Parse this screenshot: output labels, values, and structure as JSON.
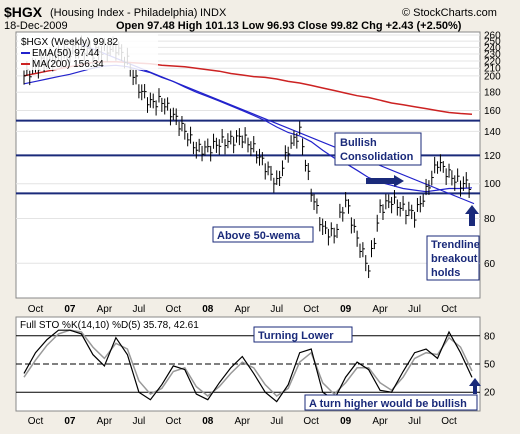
{
  "header": {
    "symbol": "$HGX",
    "name": "(Housing Index - Philadelphia)",
    "exchange": "INDX",
    "date": "18-Dec-2009",
    "ohlc": "Open 97.48  High 101.13  Low 96.93  Close 99.82  Chg +2.43 (+2.50%)",
    "watermark": "© StockCharts.com"
  },
  "legend": {
    "price": "$HGX (Weekly) 99.82",
    "ema": "EMA(50) 97.44",
    "ma": "MA(200) 156.34",
    "sto": "Full STO %K(14,10) %D(5) 35.78, 42.61"
  },
  "annotations": {
    "bullish": [
      "Bullish",
      "Consolidation"
    ],
    "above": "Above 50-wema",
    "trendline": [
      "Trendline",
      "breakout",
      "holds"
    ],
    "turning": "Turning Lower",
    "turn_higher": "A turn higher would be bullish"
  },
  "price_axis": {
    "labels": [
      "260",
      "250",
      "240",
      "230",
      "220",
      "210",
      "200",
      "180",
      "160",
      "140",
      "120",
      "100",
      "80",
      "60"
    ]
  },
  "sto_axis": {
    "labels": [
      "80",
      "50",
      "20"
    ]
  },
  "x_axis": {
    "labels": [
      {
        "text": "Oct",
        "bold": false
      },
      {
        "text": "07",
        "bold": true
      },
      {
        "text": "Apr",
        "bold": false
      },
      {
        "text": "Jul",
        "bold": false
      },
      {
        "text": "Oct",
        "bold": false
      },
      {
        "text": "08",
        "bold": true
      },
      {
        "text": "Apr",
        "bold": false
      },
      {
        "text": "Jul",
        "bold": false
      },
      {
        "text": "Oct",
        "bold": false
      },
      {
        "text": "09",
        "bold": true
      },
      {
        "text": "Apr",
        "bold": false
      },
      {
        "text": "Jul",
        "bold": false
      },
      {
        "text": "Oct",
        "bold": false
      }
    ]
  },
  "colors": {
    "background": "#f2eee6",
    "plot": "#ffffff",
    "price": "#000000",
    "ema": "#2222cc",
    "ma": "#cc2222",
    "hline": "#1a2a7a",
    "arrow": "#1a2a7a",
    "sto_k": "#000000",
    "sto_d": "#999999"
  },
  "chart_data": [
    {
      "type": "line",
      "title": "$HGX (Weekly)",
      "ylog": true,
      "ylim": [
        48,
        265
      ],
      "xrange": [
        "2006-09",
        "2009-12"
      ],
      "series": [
        {
          "name": "$HGX",
          "x": [
            "2006-09",
            "2006-10",
            "2006-11",
            "2006-12",
            "2007-01",
            "2007-02",
            "2007-03",
            "2007-04",
            "2007-05",
            "2007-06",
            "2007-07",
            "2007-08",
            "2007-09",
            "2007-10",
            "2007-11",
            "2007-12",
            "2008-01",
            "2008-02",
            "2008-03",
            "2008-04",
            "2008-05",
            "2008-06",
            "2008-07",
            "2008-08",
            "2008-09",
            "2008-10",
            "2008-11",
            "2008-12",
            "2009-01",
            "2009-02",
            "2009-03",
            "2009-04",
            "2009-05",
            "2009-06",
            "2009-07",
            "2009-08",
            "2009-09",
            "2009-10",
            "2009-11",
            "2009-12"
          ],
          "values": [
            200,
            212,
            222,
            226,
            233,
            240,
            232,
            236,
            240,
            220,
            185,
            168,
            170,
            155,
            140,
            125,
            125,
            130,
            132,
            135,
            125,
            112,
            100,
            125,
            140,
            95,
            75,
            72,
            90,
            70,
            58,
            85,
            90,
            85,
            82,
            95,
            115,
            106,
            100,
            99.82
          ]
        },
        {
          "name": "EMA(50)",
          "values": [
            190,
            193,
            196,
            199,
            202,
            206,
            210,
            213,
            214,
            212,
            208,
            204,
            198,
            193,
            186,
            180,
            175,
            170,
            165,
            160,
            155,
            150,
            144,
            139,
            136,
            131,
            124,
            118,
            114,
            109,
            104,
            101,
            99,
            97,
            96,
            95,
            96,
            97,
            97,
            97.44
          ]
        },
        {
          "name": "MA(200)",
          "values": [
            200,
            203,
            206,
            209,
            212,
            215,
            218,
            219,
            219,
            218,
            217,
            216,
            214,
            213,
            212,
            210,
            208,
            206,
            203,
            201,
            199,
            198,
            196,
            193,
            191,
            188,
            185,
            182,
            179,
            176,
            174,
            171,
            168,
            166,
            164,
            162,
            160,
            158,
            157,
            156.34
          ]
        }
      ],
      "hlines": [
        150,
        120,
        94
      ]
    },
    {
      "type": "line",
      "title": "Full STO %K(14,10) %D(5)",
      "ylim": [
        0,
        100
      ],
      "levels": [
        80,
        50,
        20
      ],
      "series": [
        {
          "name": "%K",
          "values": [
            40,
            62,
            76,
            86,
            86,
            82,
            60,
            48,
            78,
            60,
            20,
            12,
            28,
            48,
            44,
            18,
            12,
            30,
            46,
            58,
            40,
            20,
            10,
            28,
            62,
            66,
            20,
            12,
            36,
            52,
            44,
            22,
            20,
            42,
            62,
            66,
            56,
            84,
            62,
            35.78
          ]
        },
        {
          "name": "%D",
          "values": [
            36,
            54,
            70,
            82,
            86,
            84,
            68,
            56,
            72,
            66,
            32,
            18,
            24,
            42,
            46,
            26,
            16,
            26,
            40,
            52,
            46,
            28,
            16,
            24,
            52,
            62,
            30,
            18,
            30,
            46,
            46,
            30,
            22,
            36,
            56,
            62,
            60,
            78,
            68,
            42.61
          ]
        }
      ]
    }
  ]
}
